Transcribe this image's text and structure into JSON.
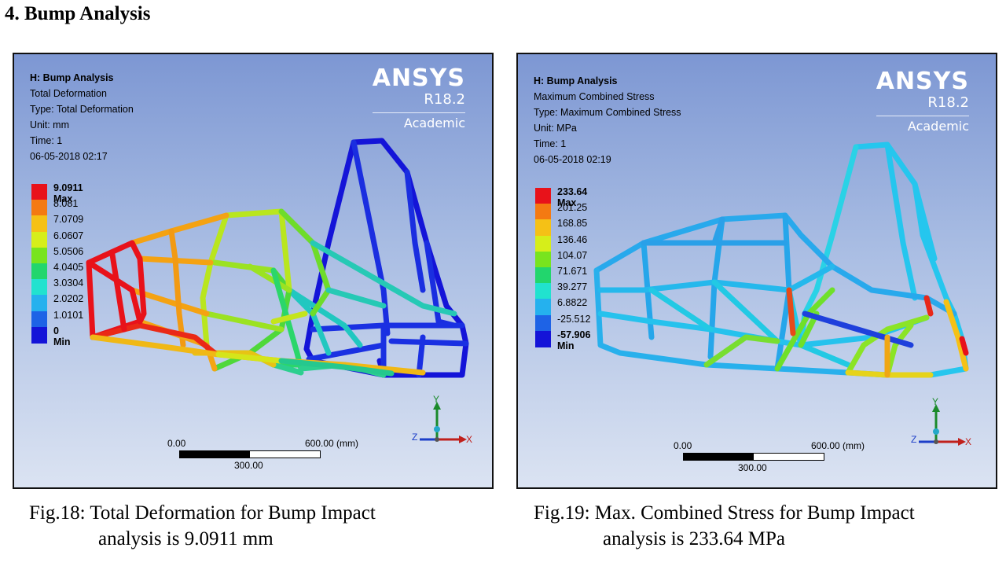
{
  "heading": "4. Bump Analysis",
  "panels": [
    {
      "title": "H: Bump Analysis",
      "result": "Total Deformation",
      "type": "Type: Total Deformation",
      "unit": "Unit: mm",
      "time": "Time: 1",
      "datetime": "06-05-2018 02:17",
      "brand": "ANSYS",
      "version": "R18.2",
      "edition": "Academic",
      "legend": [
        "9.0911 Max",
        "8.081",
        "7.0709",
        "6.0607",
        "5.0506",
        "4.0405",
        "3.0304",
        "2.0202",
        "1.0101",
        "0 Min"
      ],
      "legend_colors": [
        "#e8121a",
        "#f47a12",
        "#f5c116",
        "#d6ee1a",
        "#78e41e",
        "#22d66d",
        "#21e2cf",
        "#25b1ee",
        "#1e63e6",
        "#1414d8"
      ],
      "scale_start": "0.00",
      "scale_end": "600.00 (mm)",
      "scale_mid": "300.00",
      "axes": [
        "Y",
        "Z",
        "X"
      ]
    },
    {
      "title": "H: Bump Analysis",
      "result": "Maximum Combined Stress",
      "type": "Type: Maximum Combined Stress",
      "unit": "Unit: MPa",
      "time": "Time: 1",
      "datetime": "06-05-2018 02:19",
      "brand": "ANSYS",
      "version": "R18.2",
      "edition": "Academic",
      "legend": [
        "233.64 Max",
        "201.25",
        "168.85",
        "136.46",
        "104.07",
        "71.671",
        "39.277",
        "6.8822",
        "-25.512",
        "-57.906 Min"
      ],
      "legend_colors": [
        "#e8121a",
        "#f47a12",
        "#f5c116",
        "#d6ee1a",
        "#78e41e",
        "#22d66d",
        "#21e2cf",
        "#25b1ee",
        "#1e63e6",
        "#1414d8"
      ],
      "scale_start": "0.00",
      "scale_end": "600.00 (mm)",
      "scale_mid": "300.00",
      "axes": [
        "Y",
        "Z",
        "X"
      ]
    }
  ],
  "captions": [
    {
      "line1": "Fig.18: Total Deformation for Bump Impact",
      "line2": "analysis is 9.0911 mm"
    },
    {
      "line1": "Fig.19: Max. Combined Stress for Bump Impact",
      "line2": "analysis is 233.64 MPa"
    }
  ]
}
